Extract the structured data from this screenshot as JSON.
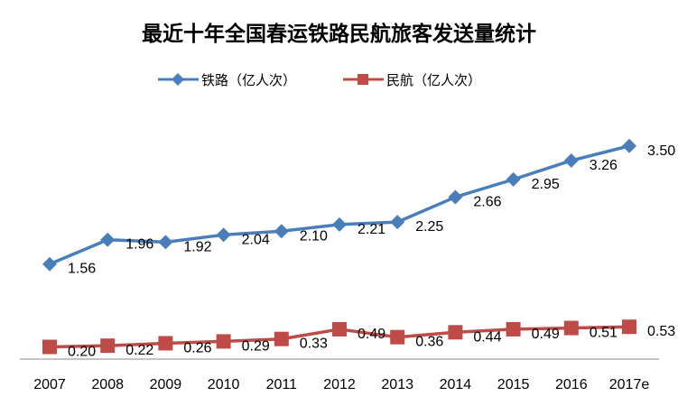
{
  "chart_data": {
    "type": "line",
    "title": "最近十年全国春运铁路民航旅客发送量统计",
    "categories": [
      "2007",
      "2008",
      "2009",
      "2010",
      "2011",
      "2012",
      "2013",
      "2014",
      "2015",
      "2016",
      "2017e"
    ],
    "series": [
      {
        "name": "铁路（亿人次）",
        "color": "#4a7ebb",
        "marker": "diamond",
        "values": [
          1.56,
          1.96,
          1.92,
          2.04,
          2.1,
          2.21,
          2.25,
          2.66,
          2.95,
          3.26,
          3.5
        ]
      },
      {
        "name": "民航（亿人次）",
        "color": "#be4b48",
        "marker": "square",
        "values": [
          0.2,
          0.22,
          0.26,
          0.29,
          0.33,
          0.49,
          0.36,
          0.44,
          0.49,
          0.51,
          0.53
        ]
      }
    ],
    "ylim": [
      0,
      3.6
    ],
    "grid": false,
    "legend": "top",
    "xlabel": "",
    "ylabel": ""
  }
}
